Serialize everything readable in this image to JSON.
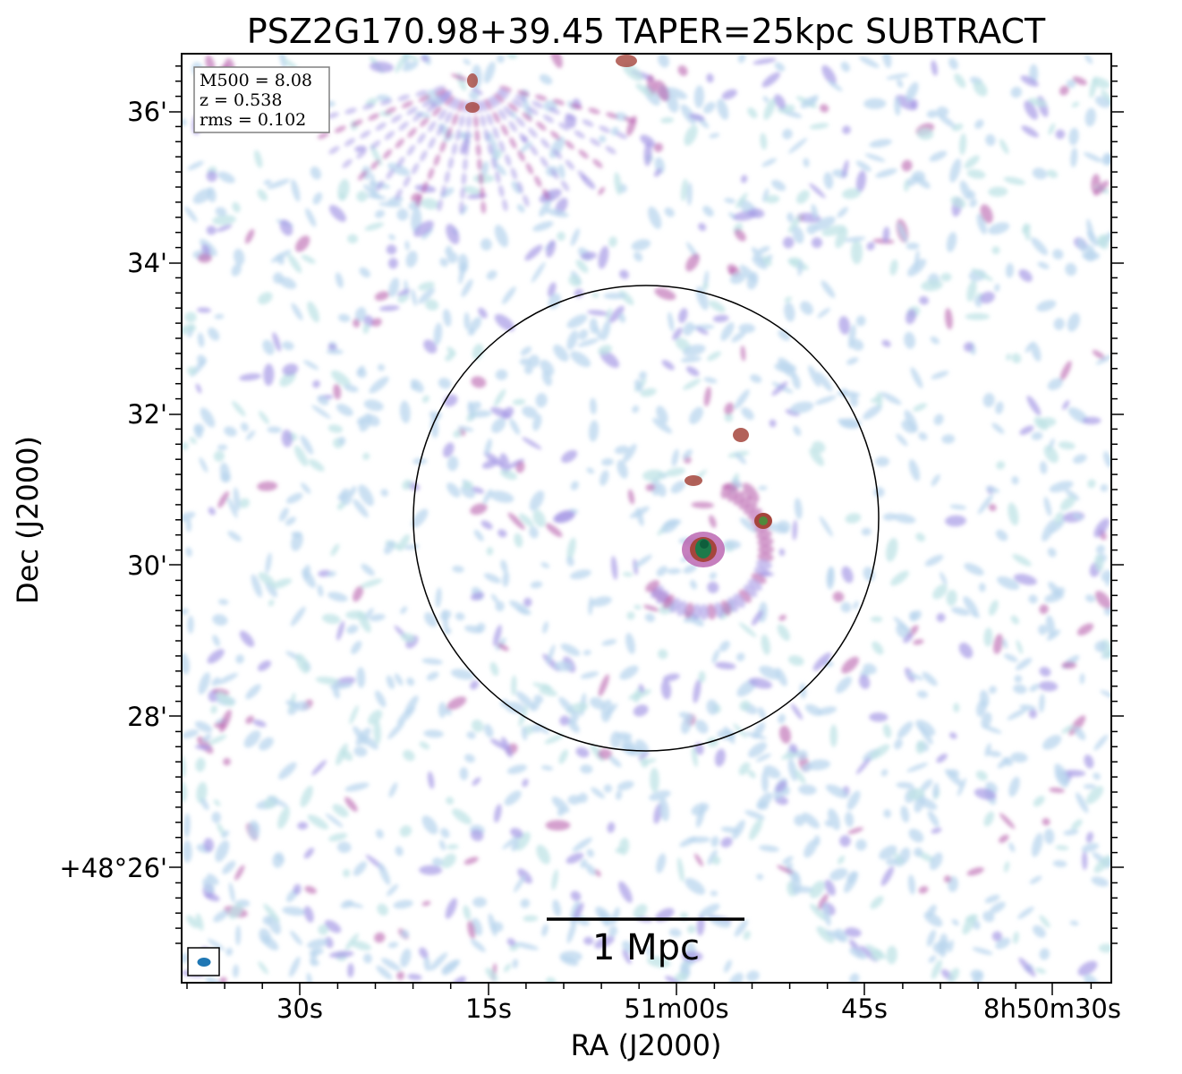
{
  "title": "PSZ2G170.98+39.45 TAPER=25kpc SUBTRACT",
  "info_box": {
    "lines": [
      "M500 = 8.08",
      "z = 0.538",
      "rms = 0.102"
    ]
  },
  "axes": {
    "xlabel": "RA (J2000)",
    "ylabel": "Dec (J2000)",
    "x_ticks": [
      "30s",
      "15s",
      "51m00s",
      "45s",
      "8h50m30s"
    ],
    "y_ticks": [
      "36'",
      "34'",
      "32'",
      "30'",
      "28'",
      "+48°26'"
    ]
  },
  "scalebar": {
    "label": "1 Mpc"
  },
  "colors": {
    "noise_light": "#b9d6ee",
    "noise_cyan": "#bfe3e6",
    "noise_purple": "#a79ae6",
    "noise_magenta": "#b85fae",
    "source_red": "#a5453c",
    "source_green": "#0e5e3c",
    "beam": "#1f77b4"
  },
  "icons": {
    "beam": "beam-ellipse-icon"
  }
}
